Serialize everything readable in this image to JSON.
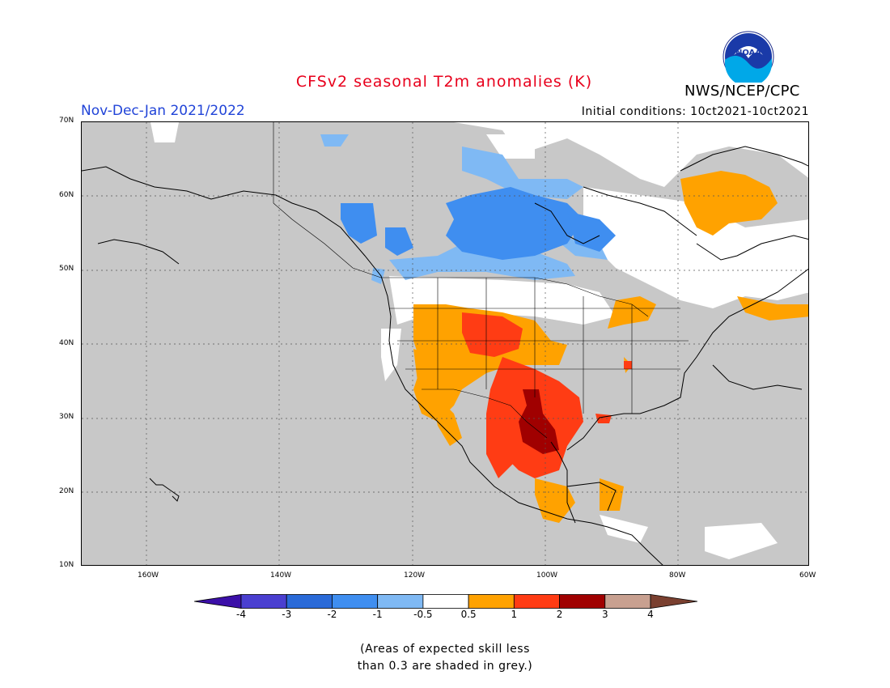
{
  "title": "CFSv2 seasonal T2m anomalies (K)",
  "period": "Nov-Dec-Jan 2021/2022",
  "initial_conditions": "Initial conditions: 10ct2021-10ct2021",
  "agency": "NWS/NCEP/CPC",
  "logo_text": "NOAA",
  "lat_labels": [
    "70N",
    "60N",
    "50N",
    "40N",
    "30N",
    "20N",
    "10N"
  ],
  "lon_labels": [
    "160W",
    "140W",
    "120W",
    "100W",
    "80W",
    "60W"
  ],
  "colorbar": {
    "labels": [
      "-4",
      "-3",
      "-2",
      "-1",
      "-0.5",
      "0.5",
      "1",
      "2",
      "3",
      "4"
    ],
    "colors": [
      "#3b0fa8",
      "#4a3fd0",
      "#2a6ad8",
      "#3f8ef0",
      "#7fb9f4",
      "#ffffff",
      "#ffa200",
      "#ff3c14",
      "#a00000",
      "#c8a090",
      "#7a4030"
    ]
  },
  "footnote": [
    "(Areas of expected skill less",
    "than 0.3 are shaded in grey.)"
  ],
  "colors": {
    "title": "#e8001c",
    "period": "#2144d8",
    "grey_mask": "#c8c8c8"
  }
}
